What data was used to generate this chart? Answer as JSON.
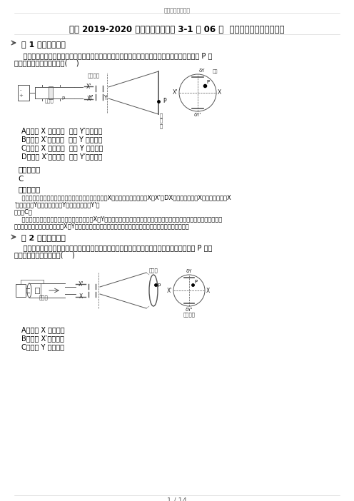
{
  "page_bg": "#ffffff",
  "header_text": "最新教育资料精选",
  "title": "精选 2019-2020 年粤教版物理选修 3-1 第 06 节  示波器的奥秘巩固辅导四",
  "q1_label": "第 1 题【单选题】",
  "q1_body1": "    示波管是示波器的核心部件，它由电子枪、偏转电极和荧光屏组成，如图所示，如果在荧光屏上 P 点",
  "q1_body2": "出现亮斑，那么示波管中的(    )",
  "q1_options": [
    "A、极板 X 应带正电  极板 Y′应带正电",
    "B、极板 X′应带正电  极板 Y 应带正电",
    "C、极板 X 应带正电  极板 Y 应带正电",
    "D、极板 X′应带正电  极板 Y′应带正电"
  ],
  "answer_label": "【答案】：",
  "answer_text": "C",
  "analysis_label": "【解析】：",
  "analysis_lines": [
    "    【解答】解：电子受力方向与电场方向相反，因电子向X向偏转则，电场方向为X到X'，DX带正电，即极板X的电势高于极板X",
    "'，同理可知Y带正电，即极板Y的电势高于极板Y'；",
    "故选：C。",
    "    【分析】由亮斑位置可知电子偏转的打在偏向X，Y向，由电子所受电场力的方向确定电场的方向，再确定极板所带的电性由亮",
    "斑位置可知电子偏转的打在偏向X，Y向，由电子所受电场力的方向确定电场的方向，再确定极板所带的电性。"
  ],
  "q2_label": "第 2 题【单选题】",
  "q2_body1": "    如图示，示波管是示波器的核心部件，它由电子枪、偏转电极和荧光屏组成，如果在荧光屏上 P 点出",
  "q2_body2": "现亮斑，那么示波管中的(    )",
  "q2_options": [
    "A、极板 X 应带负电",
    "B、极板 X′应带正电",
    "C、极板 Y 应带正电"
  ],
  "footer_text": "1 / 14",
  "figsize": [
    4.96,
    7.02
  ],
  "dpi": 100
}
